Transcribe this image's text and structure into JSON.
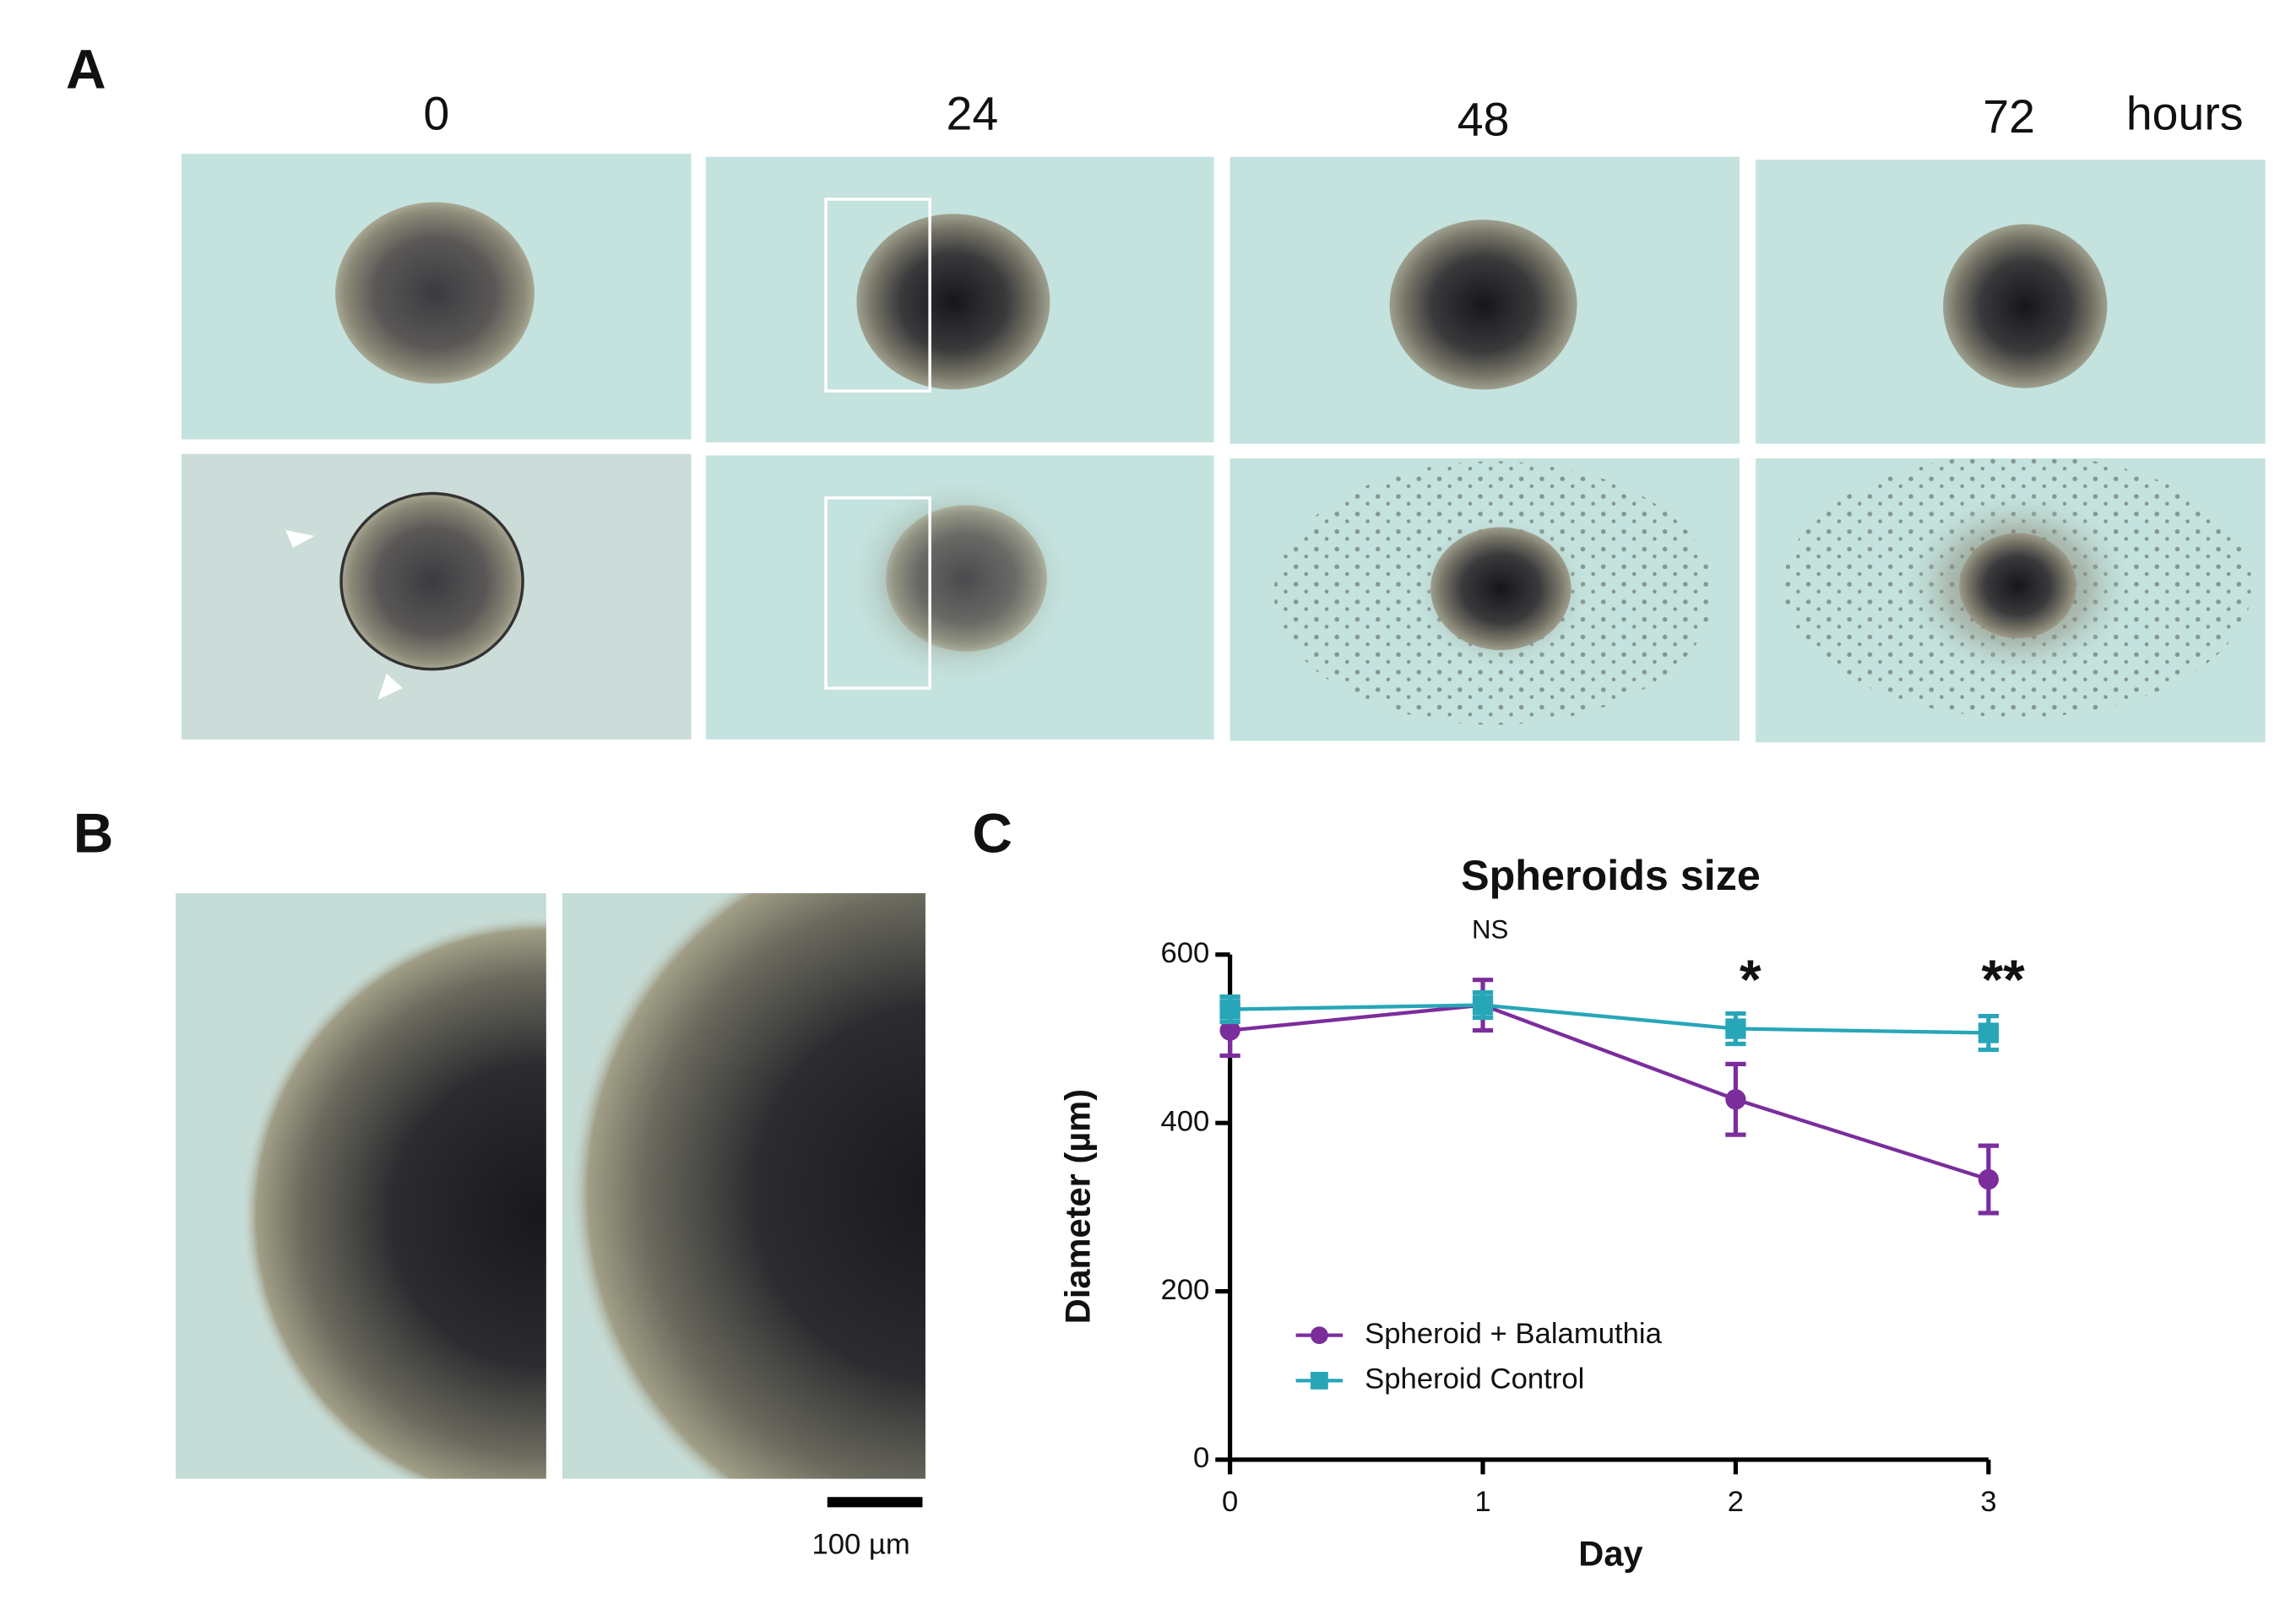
{
  "panels": {
    "A": {
      "label": "A",
      "time_labels": [
        "0",
        "24",
        "48",
        "72"
      ],
      "time_unit": "hours"
    },
    "B": {
      "label": "B",
      "scale_bar": "100 µm"
    },
    "C": {
      "label": "C"
    }
  },
  "chart_data": {
    "type": "line",
    "title": "Spheroids size",
    "x_label": "Day",
    "y_label": "Diameter (µm)",
    "x": [
      0,
      1,
      2,
      3
    ],
    "series": [
      {
        "name": "Spheroid + Balamuthia",
        "color": "#7b2d9c",
        "marker": "circle",
        "values": [
          510,
          540,
          428,
          333
        ],
        "errors": [
          30,
          30,
          42,
          40
        ]
      },
      {
        "name": "Spheroid Control",
        "color": "#27a6b8",
        "marker": "square",
        "values": [
          535,
          540,
          512,
          507
        ],
        "errors": [
          15,
          15,
          18,
          20
        ]
      }
    ],
    "xlim": [
      0,
      3
    ],
    "xticks": [
      0,
      1,
      2,
      3
    ],
    "ylim": [
      0,
      600
    ],
    "yticks": [
      0,
      200,
      400,
      600
    ],
    "annotations": [
      {
        "x": 1,
        "text": "NS"
      },
      {
        "x": 2,
        "text": "*"
      },
      {
        "x": 3,
        "text": "**"
      }
    ],
    "legend": "lower-left"
  }
}
